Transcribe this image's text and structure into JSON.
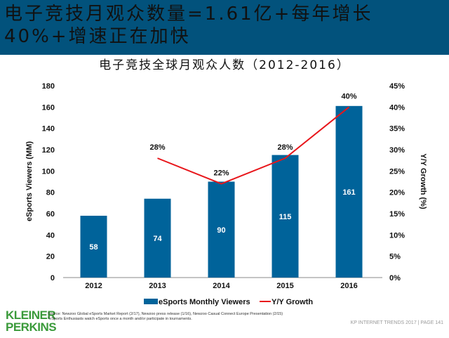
{
  "header": {
    "title": "电子竞技月观众数量=1.61亿+每年增长40%+增速正在加快"
  },
  "chart_data": {
    "type": "bar",
    "title": "电子竞技全球月观众人数（2012-2016）",
    "categories": [
      "2012",
      "2013",
      "2014",
      "2015",
      "2016"
    ],
    "series": [
      {
        "name": "eSports Monthly Viewers",
        "type": "bar",
        "axis": "left",
        "values": [
          58,
          74,
          90,
          115,
          161
        ],
        "labels": [
          "58",
          "74",
          "90",
          "115",
          "161"
        ],
        "color": "#00639a"
      },
      {
        "name": "Y/Y Growth",
        "type": "line",
        "axis": "right",
        "values": [
          null,
          28,
          22,
          28,
          40
        ],
        "labels": [
          "",
          "28%",
          "22%",
          "28%",
          "40%"
        ],
        "color": "#e8161b"
      }
    ],
    "ylabel": "eSports Viewers (MM)",
    "ylabel_right": "Y/Y Growth (%)",
    "ylim": [
      0,
      180
    ],
    "yticks": [
      "0",
      "20",
      "40",
      "60",
      "80",
      "100",
      "120",
      "140",
      "160",
      "180"
    ],
    "ylim_right": [
      0,
      45
    ],
    "yticks_right": [
      "0%",
      "5%",
      "10%",
      "15%",
      "20%",
      "25%",
      "30%",
      "35%",
      "40%",
      "45%"
    ],
    "legend": "bottom",
    "grid": false
  },
  "source": {
    "line1": "Source: Newzoo Global eSports Market Report (2/17), Newzoo press release (1/16), Newzoo Casual Connect Europe Presentation (2/15)",
    "line2": "*eSports Enthusiasts watch eSports once a month and/or participate in tournaments."
  },
  "logo": {
    "line1": "KLEINER",
    "line2": "PERKINS"
  },
  "footer": "KP INTERNET TRENDS 2017  |  PAGE 141"
}
